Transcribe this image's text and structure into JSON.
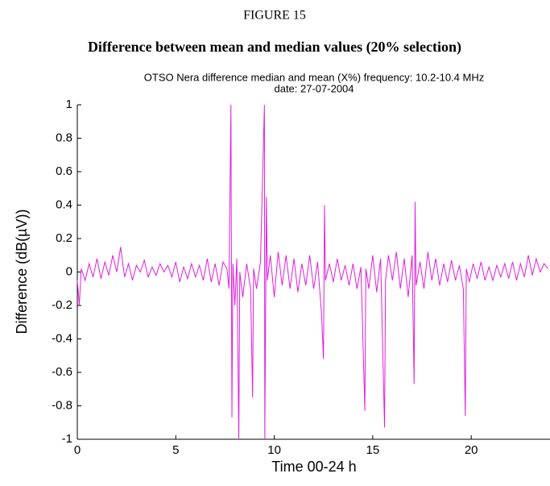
{
  "figure": {
    "label": "FIGURE 15",
    "title": "Difference between mean and median values (20% selection)"
  },
  "chart_data": {
    "type": "line",
    "title": "OTSO Nera difference median and mean (X%) frequency: 10.2-10.4 MHz",
    "subtitle": "date: 27-07-2004",
    "x_label": "Time 00-24 h",
    "y_label": "Difference (dB(µV))",
    "xlim": [
      0,
      24
    ],
    "ylim": [
      -1,
      1
    ],
    "xticks": [
      0,
      5,
      10,
      15,
      20
    ],
    "yticks": [
      -1,
      -0.8,
      -0.6,
      -0.4,
      -0.2,
      0,
      0.2,
      0.4,
      0.6,
      0.8,
      1
    ],
    "grid": false,
    "series": [
      {
        "color": "#e01ee0",
        "x": [
          0,
          0.1,
          0.2,
          0.4,
          0.6,
          0.8,
          1.0,
          1.2,
          1.4,
          1.6,
          1.8,
          2.0,
          2.2,
          2.4,
          2.6,
          2.8,
          3.0,
          3.2,
          3.4,
          3.6,
          3.8,
          4.0,
          4.2,
          4.4,
          4.6,
          4.8,
          5.0,
          5.2,
          5.4,
          5.6,
          5.8,
          6.0,
          6.2,
          6.4,
          6.6,
          6.8,
          7.0,
          7.2,
          7.4,
          7.6,
          7.7,
          7.8,
          7.85,
          7.9,
          8.0,
          8.1,
          8.2,
          8.25,
          8.4,
          8.6,
          8.8,
          8.9,
          8.95,
          9.1,
          9.3,
          9.5,
          9.52,
          9.6,
          9.65,
          9.8,
          10.0,
          10.2,
          10.4,
          10.6,
          10.8,
          11.0,
          11.2,
          11.4,
          11.6,
          11.8,
          12.0,
          12.2,
          12.4,
          12.5,
          12.55,
          12.6,
          12.8,
          13.0,
          13.2,
          13.4,
          13.6,
          13.8,
          14.0,
          14.2,
          14.4,
          14.6,
          14.65,
          14.8,
          15.0,
          15.2,
          15.4,
          15.6,
          15.65,
          15.8,
          16.0,
          16.2,
          16.4,
          16.6,
          16.8,
          17.0,
          17.1,
          17.15,
          17.2,
          17.4,
          17.6,
          17.8,
          18.0,
          18.2,
          18.4,
          18.6,
          18.8,
          19.0,
          19.2,
          19.4,
          19.6,
          19.7,
          19.75,
          19.9,
          20.1,
          20.3,
          20.5,
          20.7,
          20.9,
          21.1,
          21.3,
          21.5,
          21.7,
          21.9,
          22.1,
          22.3,
          22.5,
          22.7,
          22.9,
          23.1,
          23.3,
          23.5,
          23.7,
          23.9
        ],
        "values": [
          -0.05,
          -0.2,
          0.02,
          -0.05,
          0.05,
          -0.03,
          0.08,
          -0.04,
          0.06,
          -0.02,
          0.1,
          0.0,
          0.15,
          -0.03,
          0.05,
          -0.05,
          0.04,
          0.0,
          0.07,
          -0.03,
          0.03,
          -0.02,
          0.05,
          0.0,
          0.04,
          -0.03,
          0.06,
          -0.06,
          0.03,
          -0.04,
          0.05,
          -0.03,
          0.04,
          -0.05,
          0.08,
          -0.06,
          0.05,
          -0.08,
          0.06,
          0.02,
          -0.1,
          1,
          -0.87,
          0.05,
          -0.2,
          0.08,
          -1,
          0.0,
          -0.15,
          0.05,
          -0.1,
          -0.75,
          0.02,
          -0.1,
          0.06,
          1,
          -1,
          0.45,
          -0.05,
          0.1,
          -0.15,
          0.12,
          -0.08,
          0.1,
          -0.1,
          0.08,
          -0.12,
          0.05,
          -0.08,
          0.1,
          -0.1,
          0.06,
          -0.25,
          -0.52,
          0.4,
          -0.05,
          0.05,
          -0.06,
          0.08,
          -0.05,
          0.04,
          -0.08,
          0.05,
          -0.1,
          0.03,
          -0.83,
          0.02,
          -0.1,
          0.1,
          -0.12,
          0.08,
          -0.93,
          -0.05,
          0.1,
          -0.05,
          0.12,
          -0.1,
          0.08,
          -0.15,
          0.1,
          -0.67,
          0.42,
          -0.08,
          0.06,
          -0.1,
          0.12,
          -0.05,
          0.08,
          -0.08,
          0.05,
          -0.06,
          0.07,
          -0.05,
          0.04,
          -0.1,
          -0.86,
          0.02,
          -0.06,
          0.05,
          -0.04,
          0.06,
          -0.05,
          0.03,
          -0.05,
          0.04,
          -0.03,
          0.05,
          -0.04,
          0.06,
          -0.05,
          0.05,
          -0.03,
          0.1,
          -0.02,
          0.08,
          0.0,
          0.05,
          0.02
        ]
      }
    ]
  }
}
